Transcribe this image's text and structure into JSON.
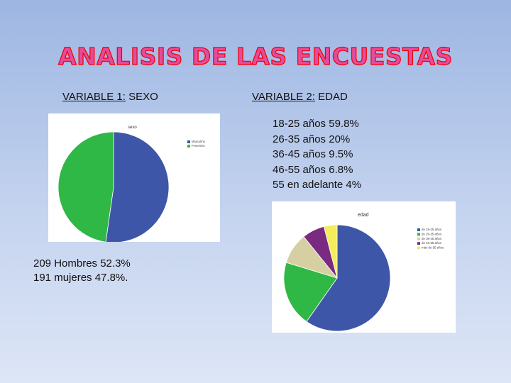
{
  "slide": {
    "title": "ANALISIS DE LAS ENCUESTAS",
    "variable1": {
      "label": "VARIABLE 1:",
      "name": "SEXO"
    },
    "variable2": {
      "label": "VARIABLE 2:",
      "name": "EDAD"
    },
    "sex_lines": [
      "209 Hombres 52.3%",
      "191 mujeres 47.8%."
    ],
    "age_lines": [
      "18-25 años 59.8%",
      "26-35 años 20%",
      "36-45 años 9.5%",
      "46-55 años 6.8%",
      "55 en adelante  4%"
    ]
  },
  "chart_data": [
    {
      "type": "pie",
      "title": "sexo",
      "categories": [
        "Masculino",
        "Femenino"
      ],
      "values": [
        52.3,
        47.8
      ],
      "colors": [
        "#3d56a8",
        "#2fb845"
      ],
      "legend": "right"
    },
    {
      "type": "pie",
      "title": "edad",
      "categories": [
        "de 18-25 años",
        "de 26-35 años",
        "de 36-45 años",
        "de 46-55 años",
        "más de 55 años"
      ],
      "values": [
        59.8,
        20,
        9.5,
        6.8,
        4
      ],
      "colors": [
        "#3d56a8",
        "#2fb845",
        "#d6cfa2",
        "#7a2a80",
        "#f4ec5a"
      ],
      "legend": "right"
    }
  ]
}
